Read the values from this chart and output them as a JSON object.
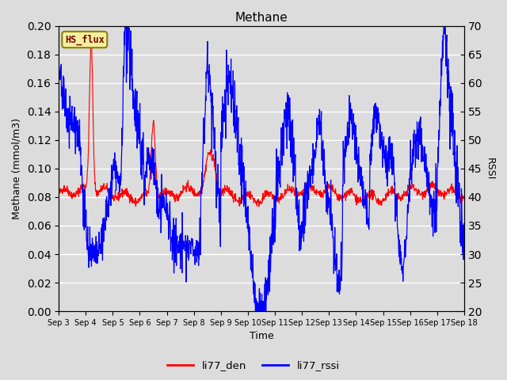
{
  "title": "Methane",
  "xlabel": "Time",
  "ylabel_left": "Methane (mmol/m3)",
  "ylabel_right": "RSSI",
  "legend_label": "HS_flux",
  "series1_label": "li77_den",
  "series2_label": "li77_rssi",
  "series1_color": "#ff0000",
  "series2_color": "#0000ff",
  "ylim_left": [
    0.0,
    0.2
  ],
  "ylim_right": [
    20,
    70
  ],
  "yticks_left": [
    0.0,
    0.02,
    0.04,
    0.06,
    0.08,
    0.1,
    0.12,
    0.14,
    0.16,
    0.18,
    0.2
  ],
  "yticks_right": [
    20,
    25,
    30,
    35,
    40,
    45,
    50,
    55,
    60,
    65,
    70
  ],
  "background_color": "#dcdcdc",
  "grid_color": "#ffffff",
  "xtick_labels": [
    "Sep 3",
    "Sep 4",
    "Sep 5",
    "Sep 6",
    "Sep 7",
    "Sep 8",
    "Sep 9",
    "Sep 10",
    "Sep 11",
    "Sep 12",
    "Sep 13",
    "Sep 14",
    "Sep 15",
    "Sep 16",
    "Sep 17",
    "Sep 18"
  ],
  "n_days": 16
}
